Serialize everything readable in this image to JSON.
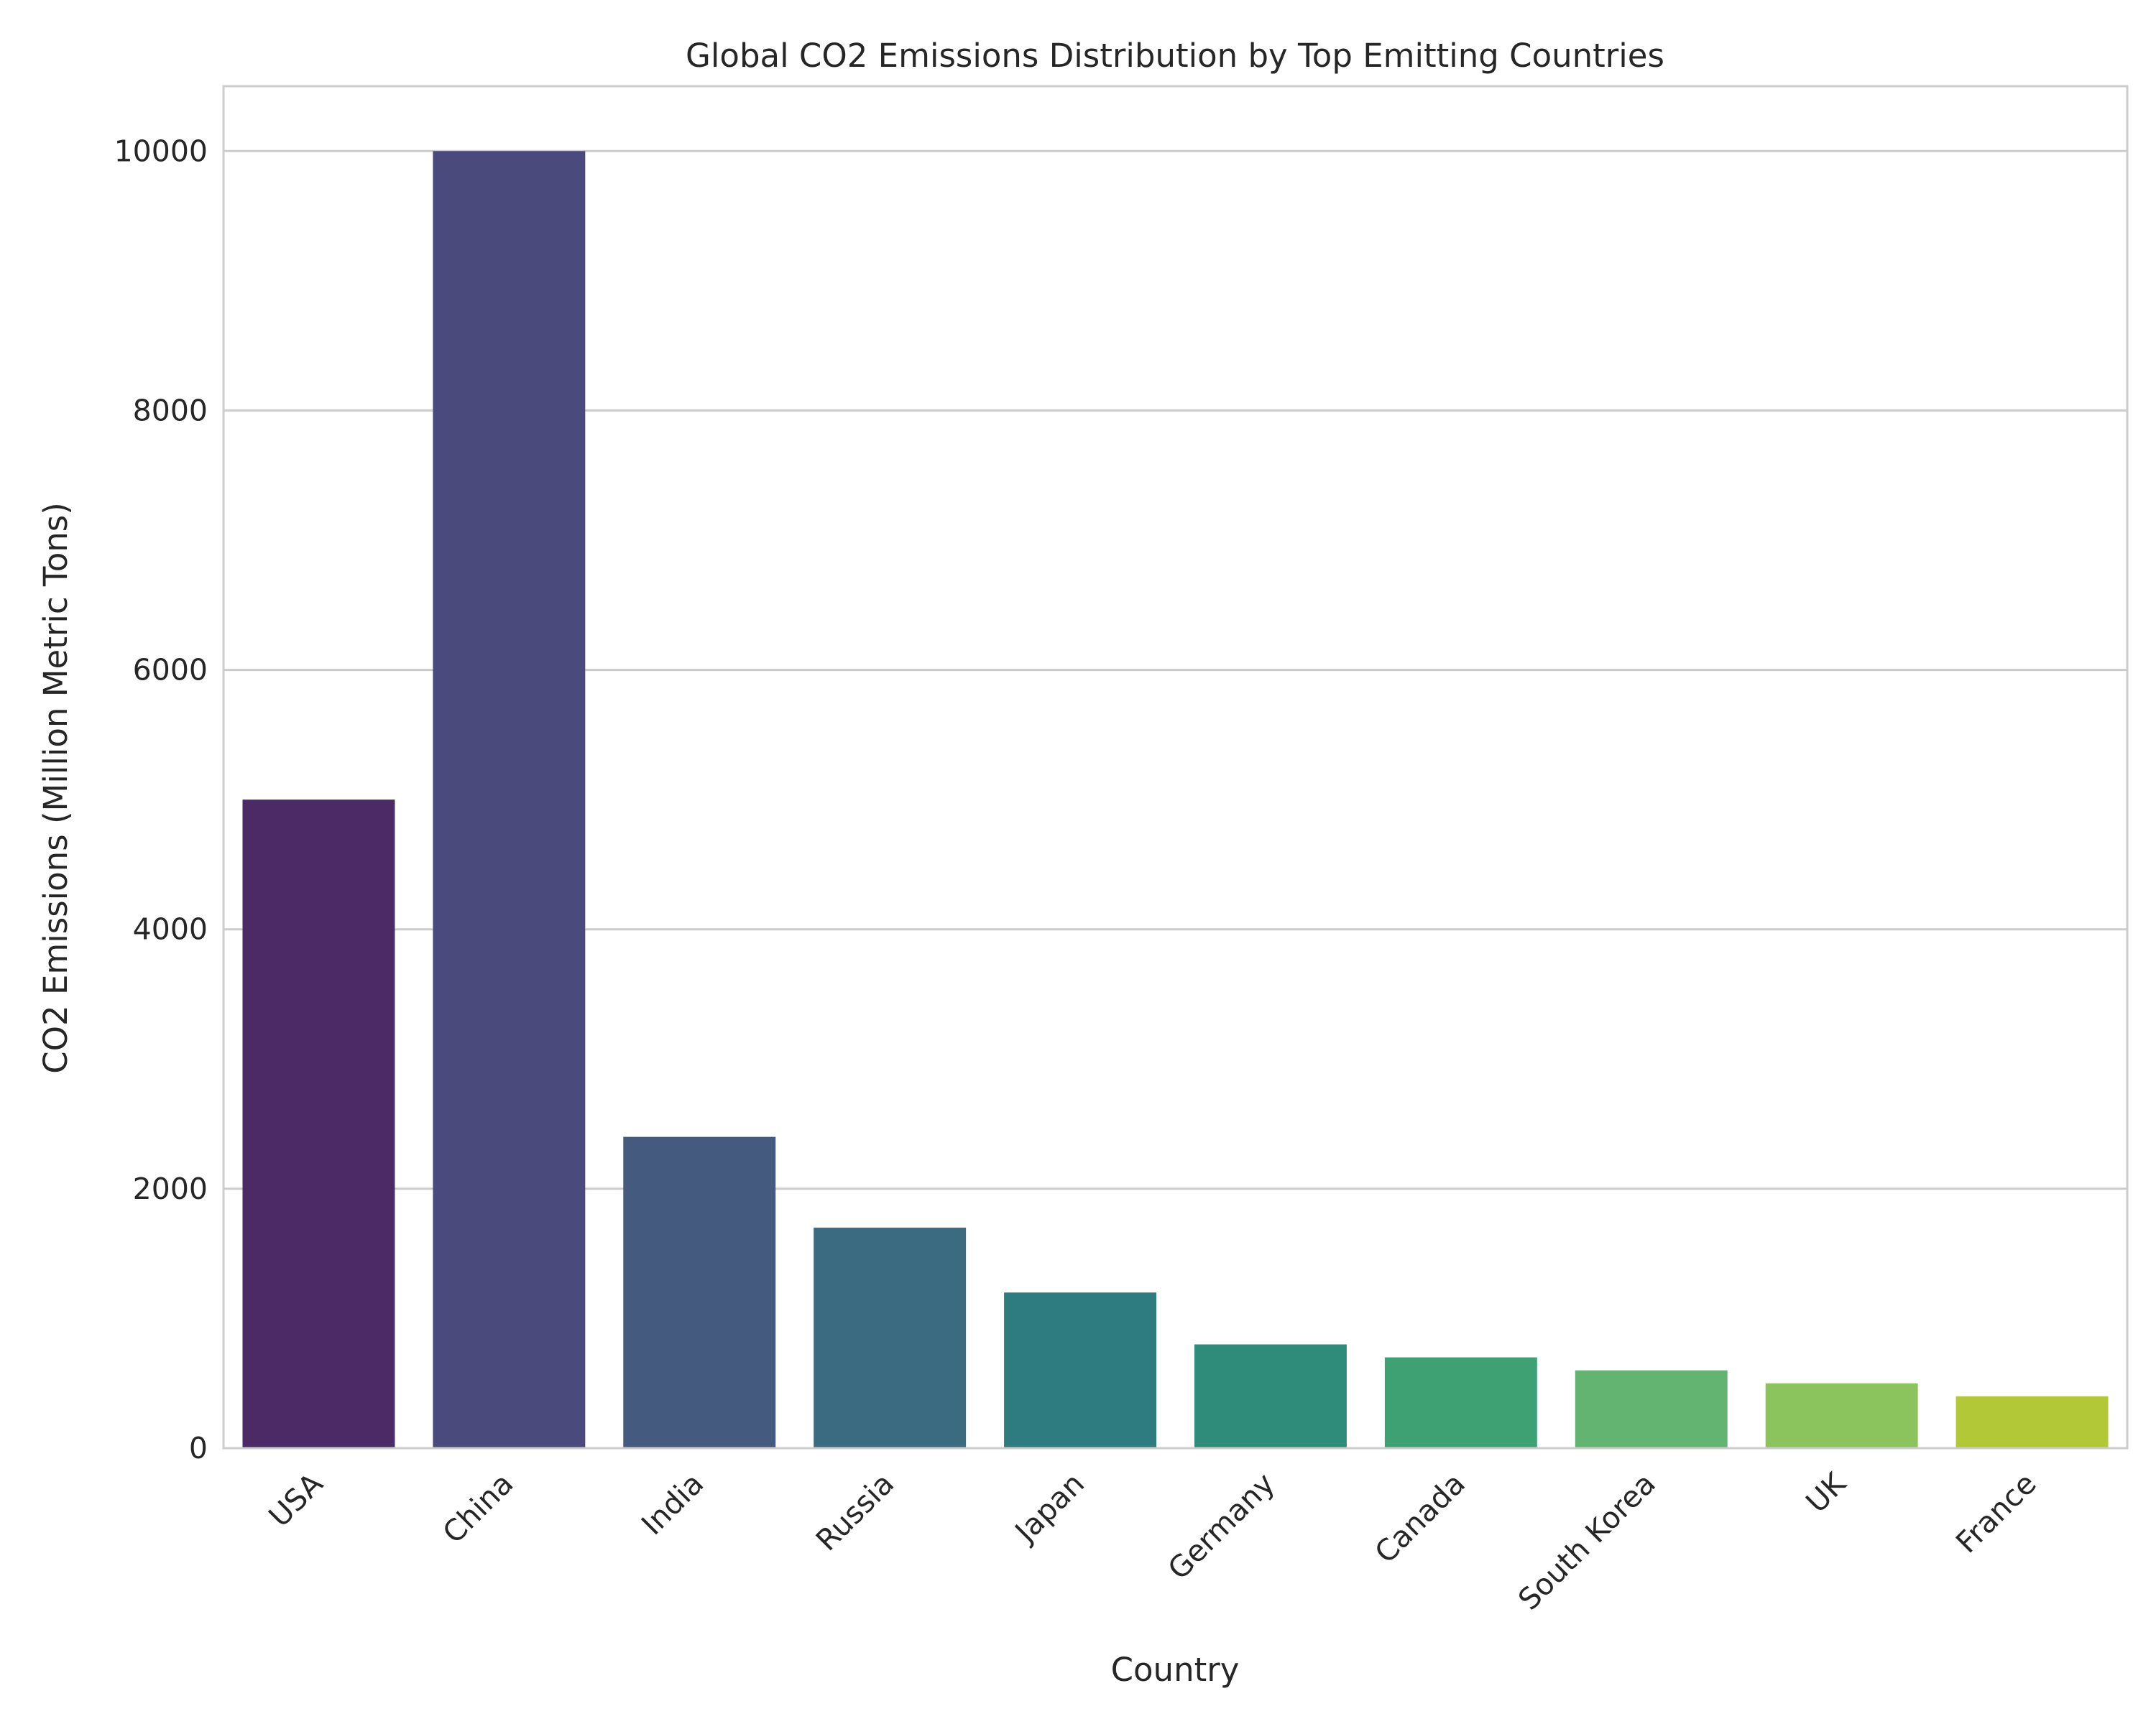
{
  "chart_data": {
    "type": "bar",
    "title": "Global CO2 Emissions Distribution by Top Emitting Countries",
    "xlabel": "Country",
    "ylabel": "CO2 Emissions (Million Metric Tons)",
    "categories": [
      "USA",
      "China",
      "India",
      "Russia",
      "Japan",
      "Germany",
      "Canada",
      "South Korea",
      "UK",
      "France"
    ],
    "values": [
      5000,
      10000,
      2400,
      1700,
      1200,
      800,
      700,
      600,
      500,
      400
    ],
    "ylim": [
      0,
      10500
    ],
    "yticks": [
      0,
      2000,
      4000,
      6000,
      8000,
      10000
    ],
    "grid": true,
    "legend": "none",
    "colors": [
      "#4b2a66",
      "#4a4a7c",
      "#445b7f",
      "#3a6b80",
      "#2e7c7f",
      "#2f8c7a",
      "#3da174",
      "#62b470",
      "#8bc35d",
      "#b2c836"
    ]
  }
}
